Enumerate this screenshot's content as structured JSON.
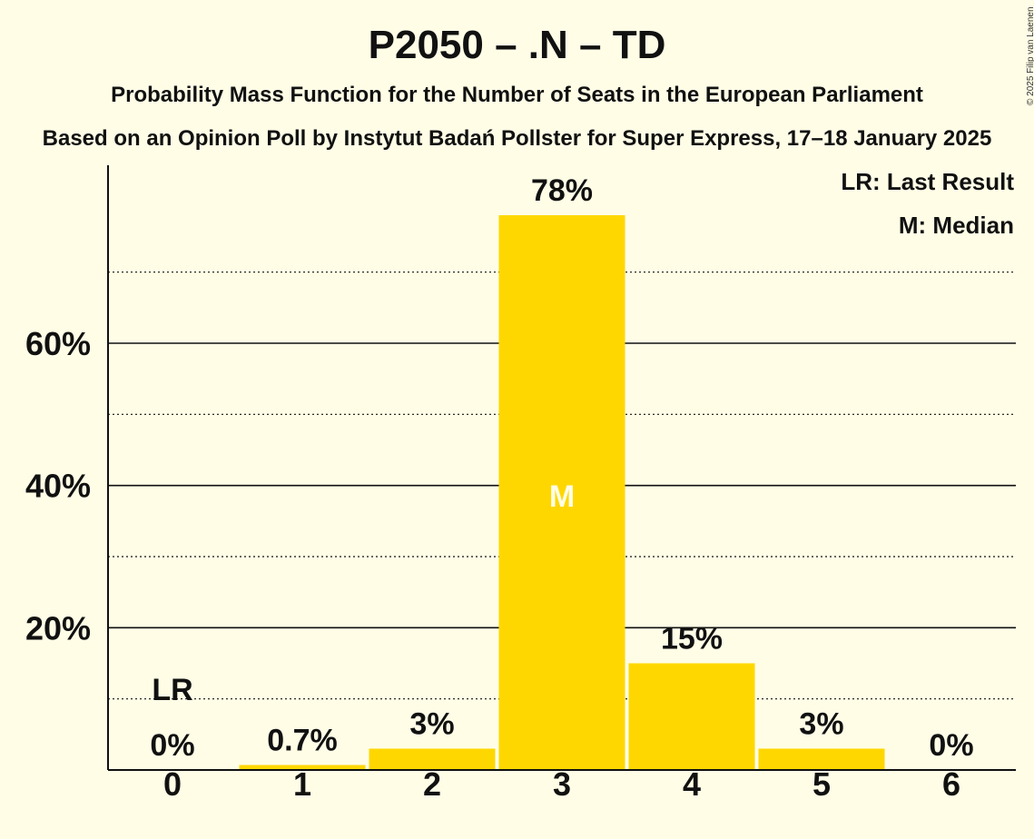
{
  "title": "P2050 – .N – TD",
  "subtitle": "Probability Mass Function for the Number of Seats in the European Parliament",
  "subtitle2": "Based on an Opinion Poll by Instytut Badań Pollster for Super Express, 17–18 January 2025",
  "copyright": "© 2025 Filip van Laenen",
  "legend": {
    "last_result": "LR: Last Result",
    "median": "M: Median"
  },
  "colors": {
    "background": "#FFFDE6",
    "bar": "#FFD700",
    "median_label": "#FFFDE6",
    "axis": "#111111"
  },
  "chart_data": {
    "type": "bar",
    "categories": [
      "0",
      "1",
      "2",
      "3",
      "4",
      "5",
      "6"
    ],
    "values": [
      0,
      0.7,
      3,
      78,
      15,
      3,
      0
    ],
    "data_labels": [
      "0%",
      "0.7%",
      "3%",
      "78%",
      "15%",
      "3%",
      "0%"
    ],
    "ylim": [
      0,
      85
    ],
    "yticks": [
      {
        "value": 20,
        "label": "20%"
      },
      {
        "value": 40,
        "label": "40%"
      },
      {
        "value": 60,
        "label": "60%"
      }
    ],
    "minor_gridlines": [
      10,
      30,
      50,
      70
    ],
    "last_result": {
      "category": "0",
      "label": "LR"
    },
    "median": {
      "category": "3",
      "label": "M"
    },
    "grid": true,
    "legend_position": "top-right"
  }
}
